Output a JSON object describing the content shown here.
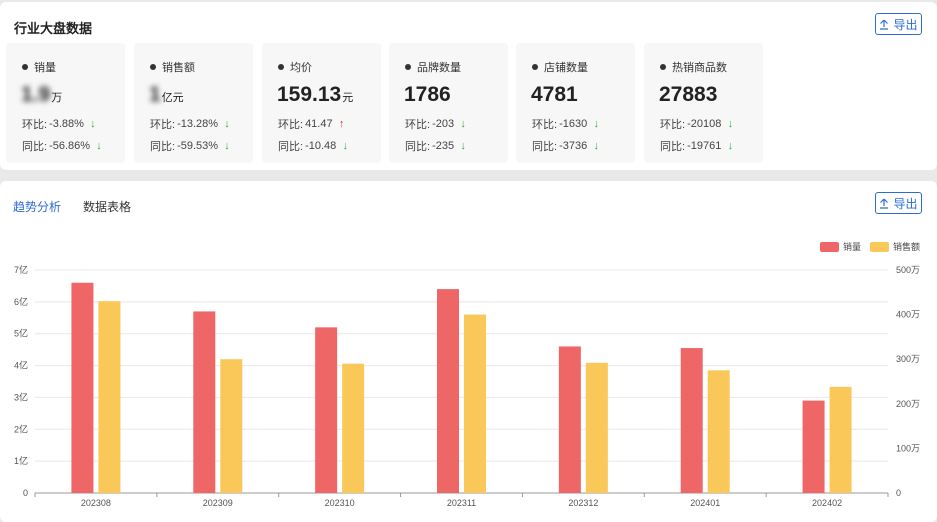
{
  "summary": {
    "title": "行业大盘数据",
    "export_label": "导出",
    "cards": [
      {
        "label": "销量",
        "value": "1.9",
        "unit": "万",
        "mom_label": "环比:",
        "mom_value": "-3.88%",
        "mom_dir": "down",
        "yoy_label": "同比:",
        "yoy_value": "-56.86%",
        "yoy_dir": "down"
      },
      {
        "label": "销售额",
        "value": "1",
        "unit": "亿元",
        "mom_label": "环比:",
        "mom_value": "-13.28%",
        "mom_dir": "down",
        "yoy_label": "同比:",
        "yoy_value": "-59.53%",
        "yoy_dir": "down"
      },
      {
        "label": "均价",
        "value": "159.13",
        "unit": "元",
        "mom_label": "环比:",
        "mom_value": "41.47",
        "mom_dir": "up",
        "yoy_label": "同比:",
        "yoy_value": "-10.48",
        "yoy_dir": "down"
      },
      {
        "label": "品牌数量",
        "value": "1786",
        "unit": "",
        "mom_label": "环比:",
        "mom_value": "-203",
        "mom_dir": "down",
        "yoy_label": "同比:",
        "yoy_value": "-235",
        "yoy_dir": "down"
      },
      {
        "label": "店铺数量",
        "value": "4781",
        "unit": "",
        "mom_label": "环比:",
        "mom_value": "-1630",
        "mom_dir": "down",
        "yoy_label": "同比:",
        "yoy_value": "-3736",
        "yoy_dir": "down"
      },
      {
        "label": "热销商品数",
        "value": "27883",
        "unit": "",
        "mom_label": "环比:",
        "mom_value": "-20108",
        "mom_dir": "down",
        "yoy_label": "同比:",
        "yoy_value": "-19761",
        "yoy_dir": "down"
      }
    ]
  },
  "trend": {
    "tabs": [
      "趋势分析",
      "数据表格"
    ],
    "active_tab": 0,
    "export_label": "导出"
  },
  "colors": {
    "series_sales": "#ee6666",
    "series_revenue": "#fac858",
    "accent": "#2e6bd6",
    "down": "#25b34a",
    "up": "#e03232"
  },
  "chart_data": {
    "type": "bar",
    "categories": [
      "202308",
      "202309",
      "202310",
      "202311",
      "202312",
      "202401",
      "202402"
    ],
    "series": [
      {
        "name": "销量",
        "axis": "left",
        "values": [
          6.6,
          5.7,
          5.2,
          6.4,
          4.6,
          4.55,
          2.9
        ]
      },
      {
        "name": "销售额",
        "axis": "right",
        "values": [
          430,
          300,
          290,
          400,
          292,
          275,
          238
        ]
      }
    ],
    "y_left": {
      "ticks": [
        "0",
        "1亿",
        "2亿",
        "3亿",
        "4亿",
        "5亿",
        "6亿",
        "7亿"
      ],
      "min": 0,
      "max": 7
    },
    "y_right": {
      "ticks": [
        "0",
        "100万",
        "200万",
        "300万",
        "400万",
        "500万"
      ],
      "min": 0,
      "max": 500
    },
    "legend_position": "top-right",
    "grid": true
  }
}
